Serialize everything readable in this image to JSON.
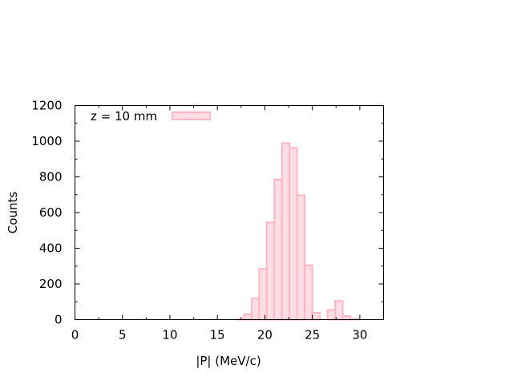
{
  "chart_data": {
    "type": "bar",
    "xlabel": "|P| (MeV/c)",
    "ylabel": "Counts",
    "xlim": [
      0,
      32.5
    ],
    "ylim": [
      0,
      1200
    ],
    "xticks": [
      0,
      5,
      10,
      15,
      20,
      25,
      30
    ],
    "yticks": [
      0,
      200,
      400,
      600,
      800,
      1000,
      1200
    ],
    "xtick_labels": [
      "0",
      "5",
      "10",
      "15",
      "20",
      "25",
      "30"
    ],
    "ytick_labels": [
      "0",
      "200",
      "400",
      "600",
      "800",
      "1000",
      "1200"
    ],
    "bin_width": 0.8,
    "bins": [
      {
        "x0": 17.0,
        "value": 3
      },
      {
        "x0": 17.8,
        "value": 30
      },
      {
        "x0": 18.6,
        "value": 118
      },
      {
        "x0": 19.4,
        "value": 285
      },
      {
        "x0": 20.2,
        "value": 545
      },
      {
        "x0": 21.0,
        "value": 785
      },
      {
        "x0": 21.8,
        "value": 988
      },
      {
        "x0": 22.6,
        "value": 962
      },
      {
        "x0": 23.4,
        "value": 697
      },
      {
        "x0": 24.2,
        "value": 305
      },
      {
        "x0": 25.0,
        "value": 38
      },
      {
        "x0": 26.6,
        "value": 55
      },
      {
        "x0": 27.4,
        "value": 105
      },
      {
        "x0": 28.2,
        "value": 20
      },
      {
        "x0": 29.0,
        "value": 5
      }
    ],
    "series": [
      {
        "name": "z = 10 mm",
        "fill": "#ffdde5",
        "edge": "#ffb6c6"
      }
    ],
    "legend_position": "top-left",
    "grid": false
  }
}
